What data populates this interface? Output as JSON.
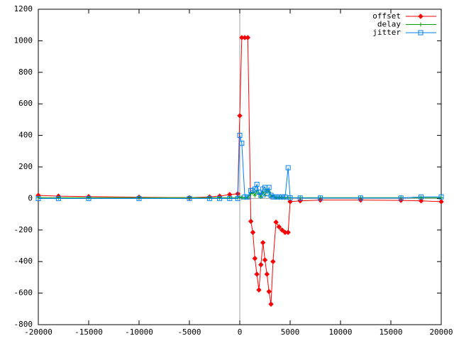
{
  "chart_data": {
    "type": "line",
    "x": [
      -20000,
      -18000,
      -15000,
      -10000,
      -5000,
      -3000,
      -2000,
      -1000,
      -200,
      0,
      200,
      500,
      800,
      1100,
      1300,
      1500,
      1700,
      1900,
      2100,
      2300,
      2500,
      2700,
      2900,
      3100,
      3300,
      3600,
      3900,
      4200,
      4500,
      4800,
      5000,
      6000,
      8000,
      12000,
      16000,
      18000,
      20000
    ],
    "series": [
      {
        "name": "offset",
        "color": "#ff0000",
        "marker": "diamond",
        "values": [
          20,
          15,
          12,
          8,
          5,
          10,
          15,
          25,
          30,
          525,
          1020,
          1020,
          1020,
          -145,
          -215,
          -380,
          -480,
          -580,
          -420,
          -280,
          -390,
          -480,
          -590,
          -670,
          -400,
          -150,
          -180,
          -200,
          -215,
          -215,
          -20,
          -15,
          -10,
          -10,
          -12,
          -15,
          -20
        ]
      },
      {
        "name": "delay",
        "color": "#00a000",
        "marker": "plus",
        "values": [
          5,
          5,
          5,
          5,
          5,
          5,
          5,
          5,
          5,
          10,
          5,
          5,
          5,
          30,
          40,
          20,
          50,
          30,
          10,
          40,
          20,
          60,
          40,
          10,
          20,
          5,
          5,
          5,
          5,
          5,
          5,
          5,
          5,
          5,
          5,
          5,
          5
        ]
      },
      {
        "name": "jitter",
        "color": "#0080ff",
        "marker": "square",
        "values": [
          0,
          0,
          0,
          0,
          0,
          0,
          0,
          0,
          0,
          400,
          350,
          10,
          10,
          50,
          50,
          60,
          90,
          40,
          20,
          60,
          70,
          30,
          70,
          20,
          10,
          10,
          10,
          10,
          10,
          195,
          5,
          3,
          3,
          3,
          3,
          10,
          10
        ]
      }
    ],
    "xlim": [
      -20000,
      20000
    ],
    "xticks": [
      -20000,
      -15000,
      -10000,
      -5000,
      0,
      5000,
      10000,
      15000,
      20000
    ],
    "ylim": [
      -800,
      1200
    ],
    "yticks": [
      -800,
      -600,
      -400,
      -200,
      0,
      200,
      400,
      600,
      800,
      1000,
      1200
    ],
    "zeroaxis": true,
    "legend": "top-right"
  }
}
